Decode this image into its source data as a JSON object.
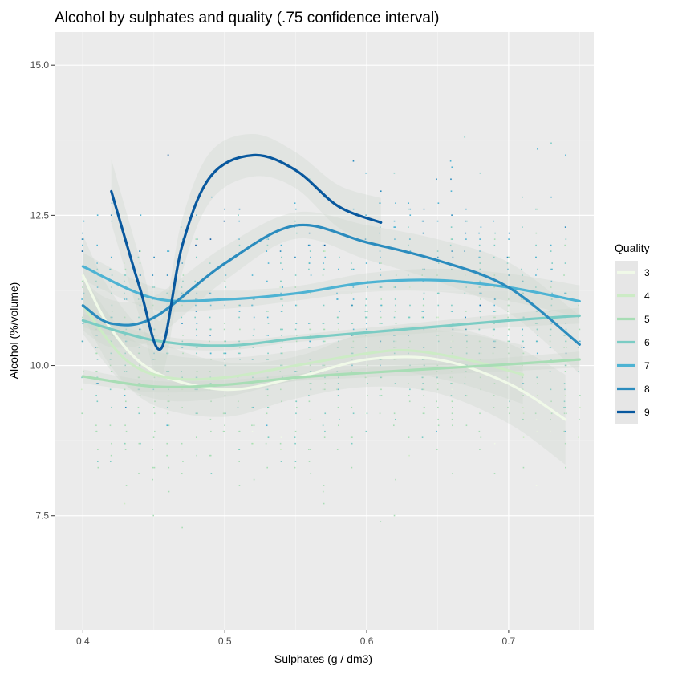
{
  "chart_data": {
    "type": "scatter",
    "title": "Alcohol by sulphates and quality (.75 confidence interval)",
    "xlabel": "Sulphates (g / dm3)",
    "ylabel": "Alcohol (%/volume)",
    "xlim": [
      0.38,
      0.76
    ],
    "ylim": [
      5.6,
      15.55
    ],
    "x_ticks": [
      "0.4",
      "0.5",
      "0.6",
      "0.7"
    ],
    "y_ticks": [
      "7.5",
      "10.0",
      "12.5",
      "15.0"
    ],
    "x_tick_values": [
      0.4,
      0.5,
      0.6,
      0.7
    ],
    "y_tick_values": [
      7.5,
      10.0,
      12.5,
      15.0
    ],
    "grid": true,
    "legend": {
      "title": "Quality",
      "position": "right"
    },
    "series": [
      {
        "name": "3",
        "color": "#f0f9e8",
        "x": [
          0.4,
          0.42,
          0.45,
          0.5,
          0.55,
          0.6,
          0.65,
          0.7,
          0.74
        ],
        "y": [
          11.5,
          10.6,
          9.9,
          9.6,
          9.8,
          10.1,
          10.1,
          9.7,
          9.1
        ]
      },
      {
        "name": "4",
        "color": "#ccebc5",
        "x": [
          0.4,
          0.43,
          0.46,
          0.5,
          0.55,
          0.6,
          0.63,
          0.67,
          0.71
        ],
        "y": [
          11.0,
          10.1,
          9.8,
          9.8,
          10.0,
          10.2,
          10.25,
          10.1,
          9.85
        ]
      },
      {
        "name": "5",
        "color": "#a8ddb5",
        "x": [
          0.4,
          0.45,
          0.5,
          0.55,
          0.6,
          0.65,
          0.7,
          0.75
        ],
        "y": [
          9.82,
          9.65,
          9.68,
          9.8,
          9.88,
          9.95,
          10.02,
          10.1
        ]
      },
      {
        "name": "6",
        "color": "#7bccc4",
        "x": [
          0.4,
          0.45,
          0.5,
          0.55,
          0.6,
          0.65,
          0.7,
          0.75
        ],
        "y": [
          10.75,
          10.42,
          10.33,
          10.45,
          10.55,
          10.65,
          10.75,
          10.83
        ]
      },
      {
        "name": "7",
        "color": "#4eb3d3",
        "x": [
          0.4,
          0.45,
          0.5,
          0.55,
          0.6,
          0.65,
          0.7,
          0.75
        ],
        "y": [
          11.65,
          11.12,
          11.1,
          11.2,
          11.38,
          11.42,
          11.3,
          11.07
        ]
      },
      {
        "name": "8",
        "color": "#2b8cbe",
        "x": [
          0.4,
          0.42,
          0.45,
          0.5,
          0.55,
          0.6,
          0.65,
          0.7,
          0.75
        ],
        "y": [
          11.0,
          10.7,
          10.8,
          11.7,
          12.33,
          12.05,
          11.75,
          11.3,
          10.35
        ]
      },
      {
        "name": "9",
        "color": "#08589e",
        "x": [
          0.42,
          0.44,
          0.455,
          0.47,
          0.49,
          0.52,
          0.55,
          0.58,
          0.61
        ],
        "y": [
          12.9,
          11.3,
          10.28,
          12.0,
          13.15,
          13.5,
          13.25,
          12.65,
          12.38
        ]
      }
    ]
  }
}
